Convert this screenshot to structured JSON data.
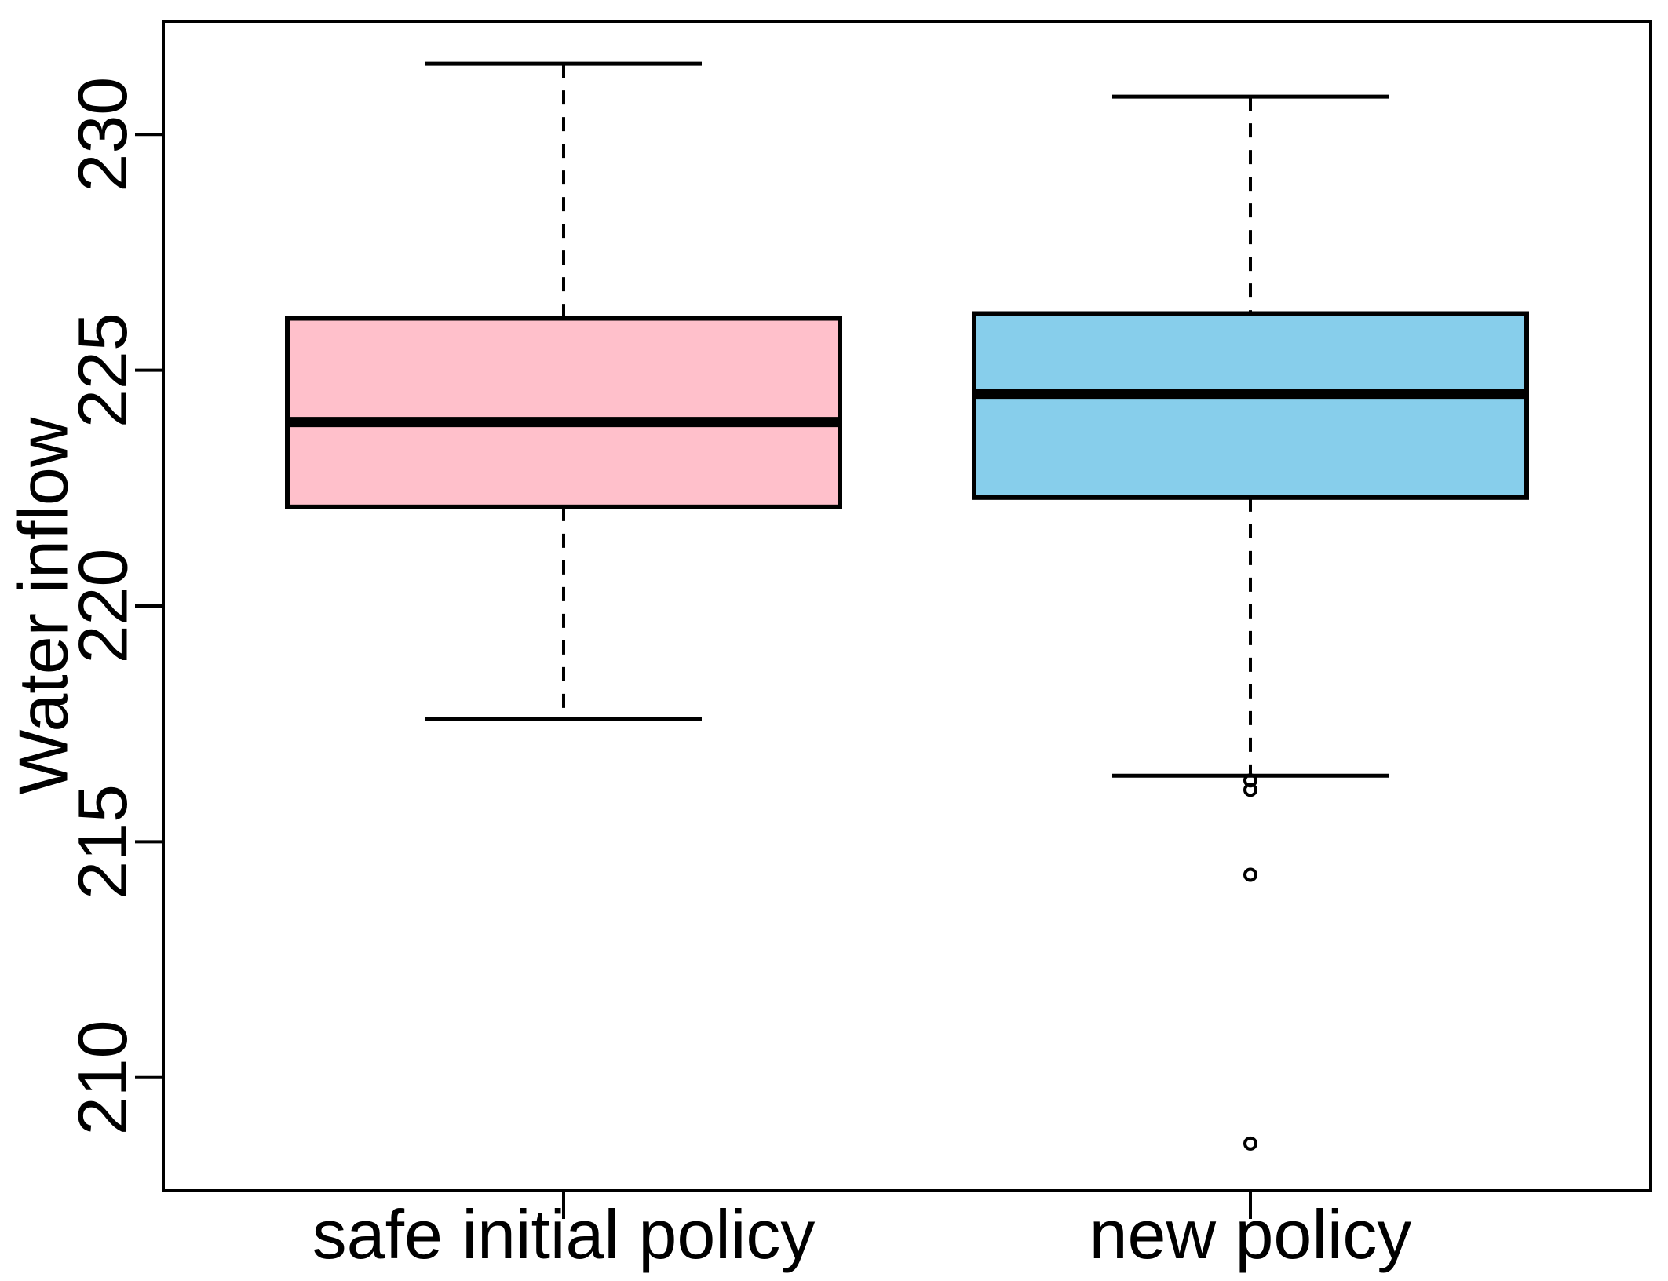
{
  "chart_data": {
    "type": "boxplot",
    "title": "",
    "xlabel": "",
    "ylabel": "Water inflow",
    "categories": [
      "safe initial policy",
      "new policy"
    ],
    "yticks": [
      210,
      215,
      220,
      225,
      230
    ],
    "ylim": [
      207.6,
      232.4
    ],
    "grid": false,
    "legend": "none",
    "line_color": "#000000",
    "background": "#FFFFFF",
    "series": [
      {
        "name": "safe initial policy",
        "fill_color": "#FFC0CB",
        "whisker_low": 217.6,
        "q1": 222.1,
        "median": 223.9,
        "q3": 226.1,
        "whisker_high": 231.5,
        "outliers": []
      },
      {
        "name": "new policy",
        "fill_color": "#87CEEB",
        "whisker_low": 216.4,
        "q1": 222.3,
        "median": 224.5,
        "q3": 226.2,
        "whisker_high": 230.8,
        "outliers": [
          216.3,
          216.1,
          214.3,
          208.6
        ]
      }
    ]
  }
}
